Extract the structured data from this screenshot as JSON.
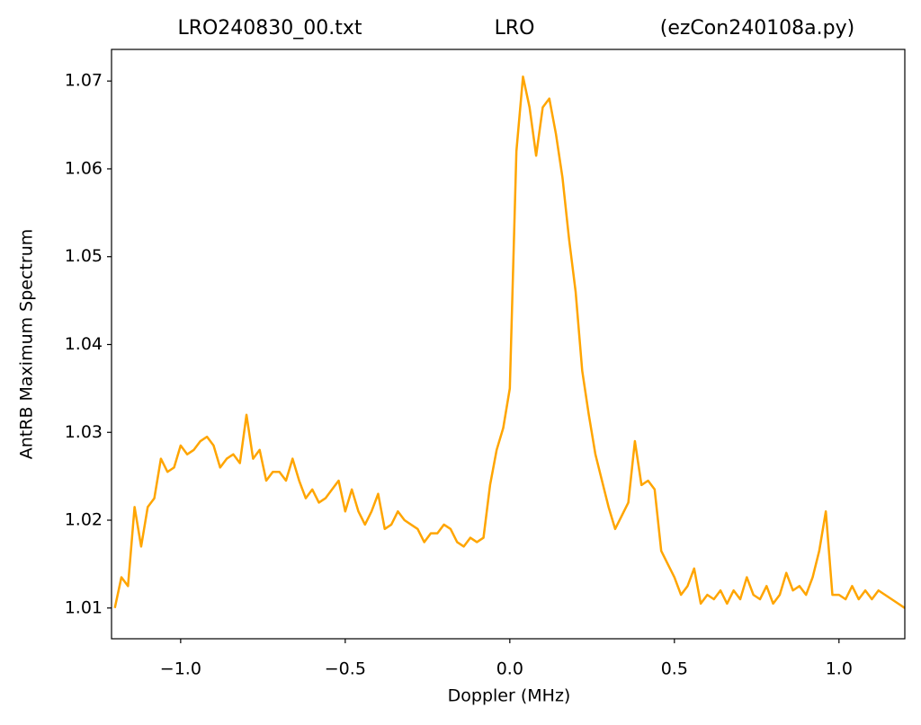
{
  "chart_data": {
    "type": "line",
    "title": [
      "LRO240830_00.txt",
      "LRO",
      "(ezCon240108a.py)"
    ],
    "xlabel": "Doppler (MHz)",
    "ylabel": "AntRB Maximum Spectrum",
    "xlim": [
      -1.21,
      1.2
    ],
    "ylim": [
      1.0065,
      1.0736
    ],
    "xticks": [
      {
        "value": -1,
        "label": "−1.0"
      },
      {
        "value": -0.5,
        "label": "−0.5"
      },
      {
        "value": 0,
        "label": "0.0"
      },
      {
        "value": 0.5,
        "label": "0.5"
      },
      {
        "value": 1,
        "label": "1.0"
      }
    ],
    "yticks": [
      1.01,
      1.02,
      1.03,
      1.04,
      1.05,
      1.06,
      1.07
    ],
    "x": [
      -1.2,
      -1.18,
      -1.16,
      -1.14,
      -1.12,
      -1.1,
      -1.08,
      -1.06,
      -1.04,
      -1.02,
      -1.0,
      -0.98,
      -0.96,
      -0.94,
      -0.92,
      -0.9,
      -0.88,
      -0.86,
      -0.84,
      -0.82,
      -0.8,
      -0.78,
      -0.76,
      -0.74,
      -0.72,
      -0.7,
      -0.68,
      -0.66,
      -0.64,
      -0.62,
      -0.6,
      -0.58,
      -0.56,
      -0.54,
      -0.52,
      -0.5,
      -0.48,
      -0.46,
      -0.44,
      -0.42,
      -0.4,
      -0.38,
      -0.36,
      -0.34,
      -0.32,
      -0.3,
      -0.28,
      -0.26,
      -0.24,
      -0.22,
      -0.2,
      -0.18,
      -0.16,
      -0.14,
      -0.12,
      -0.1,
      -0.08,
      -0.06,
      -0.04,
      -0.02,
      0.0,
      0.02,
      0.04,
      0.06,
      0.08,
      0.1,
      0.12,
      0.14,
      0.16,
      0.18,
      0.2,
      0.22,
      0.24,
      0.26,
      0.28,
      0.3,
      0.32,
      0.34,
      0.36,
      0.38,
      0.4,
      0.42,
      0.44,
      0.46,
      0.48,
      0.5,
      0.52,
      0.54,
      0.56,
      0.58,
      0.6,
      0.62,
      0.64,
      0.66,
      0.68,
      0.7,
      0.72,
      0.74,
      0.76,
      0.78,
      0.8,
      0.82,
      0.84,
      0.86,
      0.88,
      0.9,
      0.92,
      0.94,
      0.96,
      0.98,
      1.0,
      1.02,
      1.04,
      1.06,
      1.08,
      1.1,
      1.12,
      1.14,
      1.16,
      1.18,
      1.2
    ],
    "series": [
      {
        "color": "#ffa500",
        "values": [
          1.01,
          1.0135,
          1.0125,
          1.0215,
          1.017,
          1.0215,
          1.0225,
          1.027,
          1.0255,
          1.026,
          1.0285,
          1.0275,
          1.028,
          1.029,
          1.0295,
          1.0285,
          1.026,
          1.027,
          1.0275,
          1.0265,
          1.032,
          1.027,
          1.028,
          1.0245,
          1.0255,
          1.0255,
          1.0245,
          1.027,
          1.0245,
          1.0225,
          1.0235,
          1.022,
          1.0225,
          1.0235,
          1.0245,
          1.021,
          1.0235,
          1.021,
          1.0195,
          1.021,
          1.023,
          1.019,
          1.0195,
          1.021,
          1.02,
          1.0195,
          1.019,
          1.0175,
          1.0185,
          1.0185,
          1.0195,
          1.019,
          1.0175,
          1.017,
          1.018,
          1.0175,
          1.018,
          1.024,
          1.028,
          1.0305,
          1.035,
          1.062,
          1.0705,
          1.067,
          1.0615,
          1.067,
          1.068,
          1.064,
          1.059,
          1.052,
          1.046,
          1.037,
          1.032,
          1.0275,
          1.0245,
          1.0215,
          1.019,
          1.0205,
          1.022,
          1.029,
          1.024,
          1.0245,
          1.0235,
          1.0165,
          1.015,
          1.0135,
          1.0115,
          1.0125,
          1.0145,
          1.0105,
          1.0115,
          1.011,
          1.012,
          1.0105,
          1.012,
          1.011,
          1.0135,
          1.0115,
          1.011,
          1.0125,
          1.0105,
          1.0115,
          1.014,
          1.012,
          1.0125,
          1.0115,
          1.0135,
          1.0165,
          1.021,
          1.0115,
          1.0115,
          1.011,
          1.0125,
          1.011,
          1.012,
          1.011,
          1.012,
          1.0115,
          1.011,
          1.0105,
          1.01
        ]
      }
    ]
  }
}
